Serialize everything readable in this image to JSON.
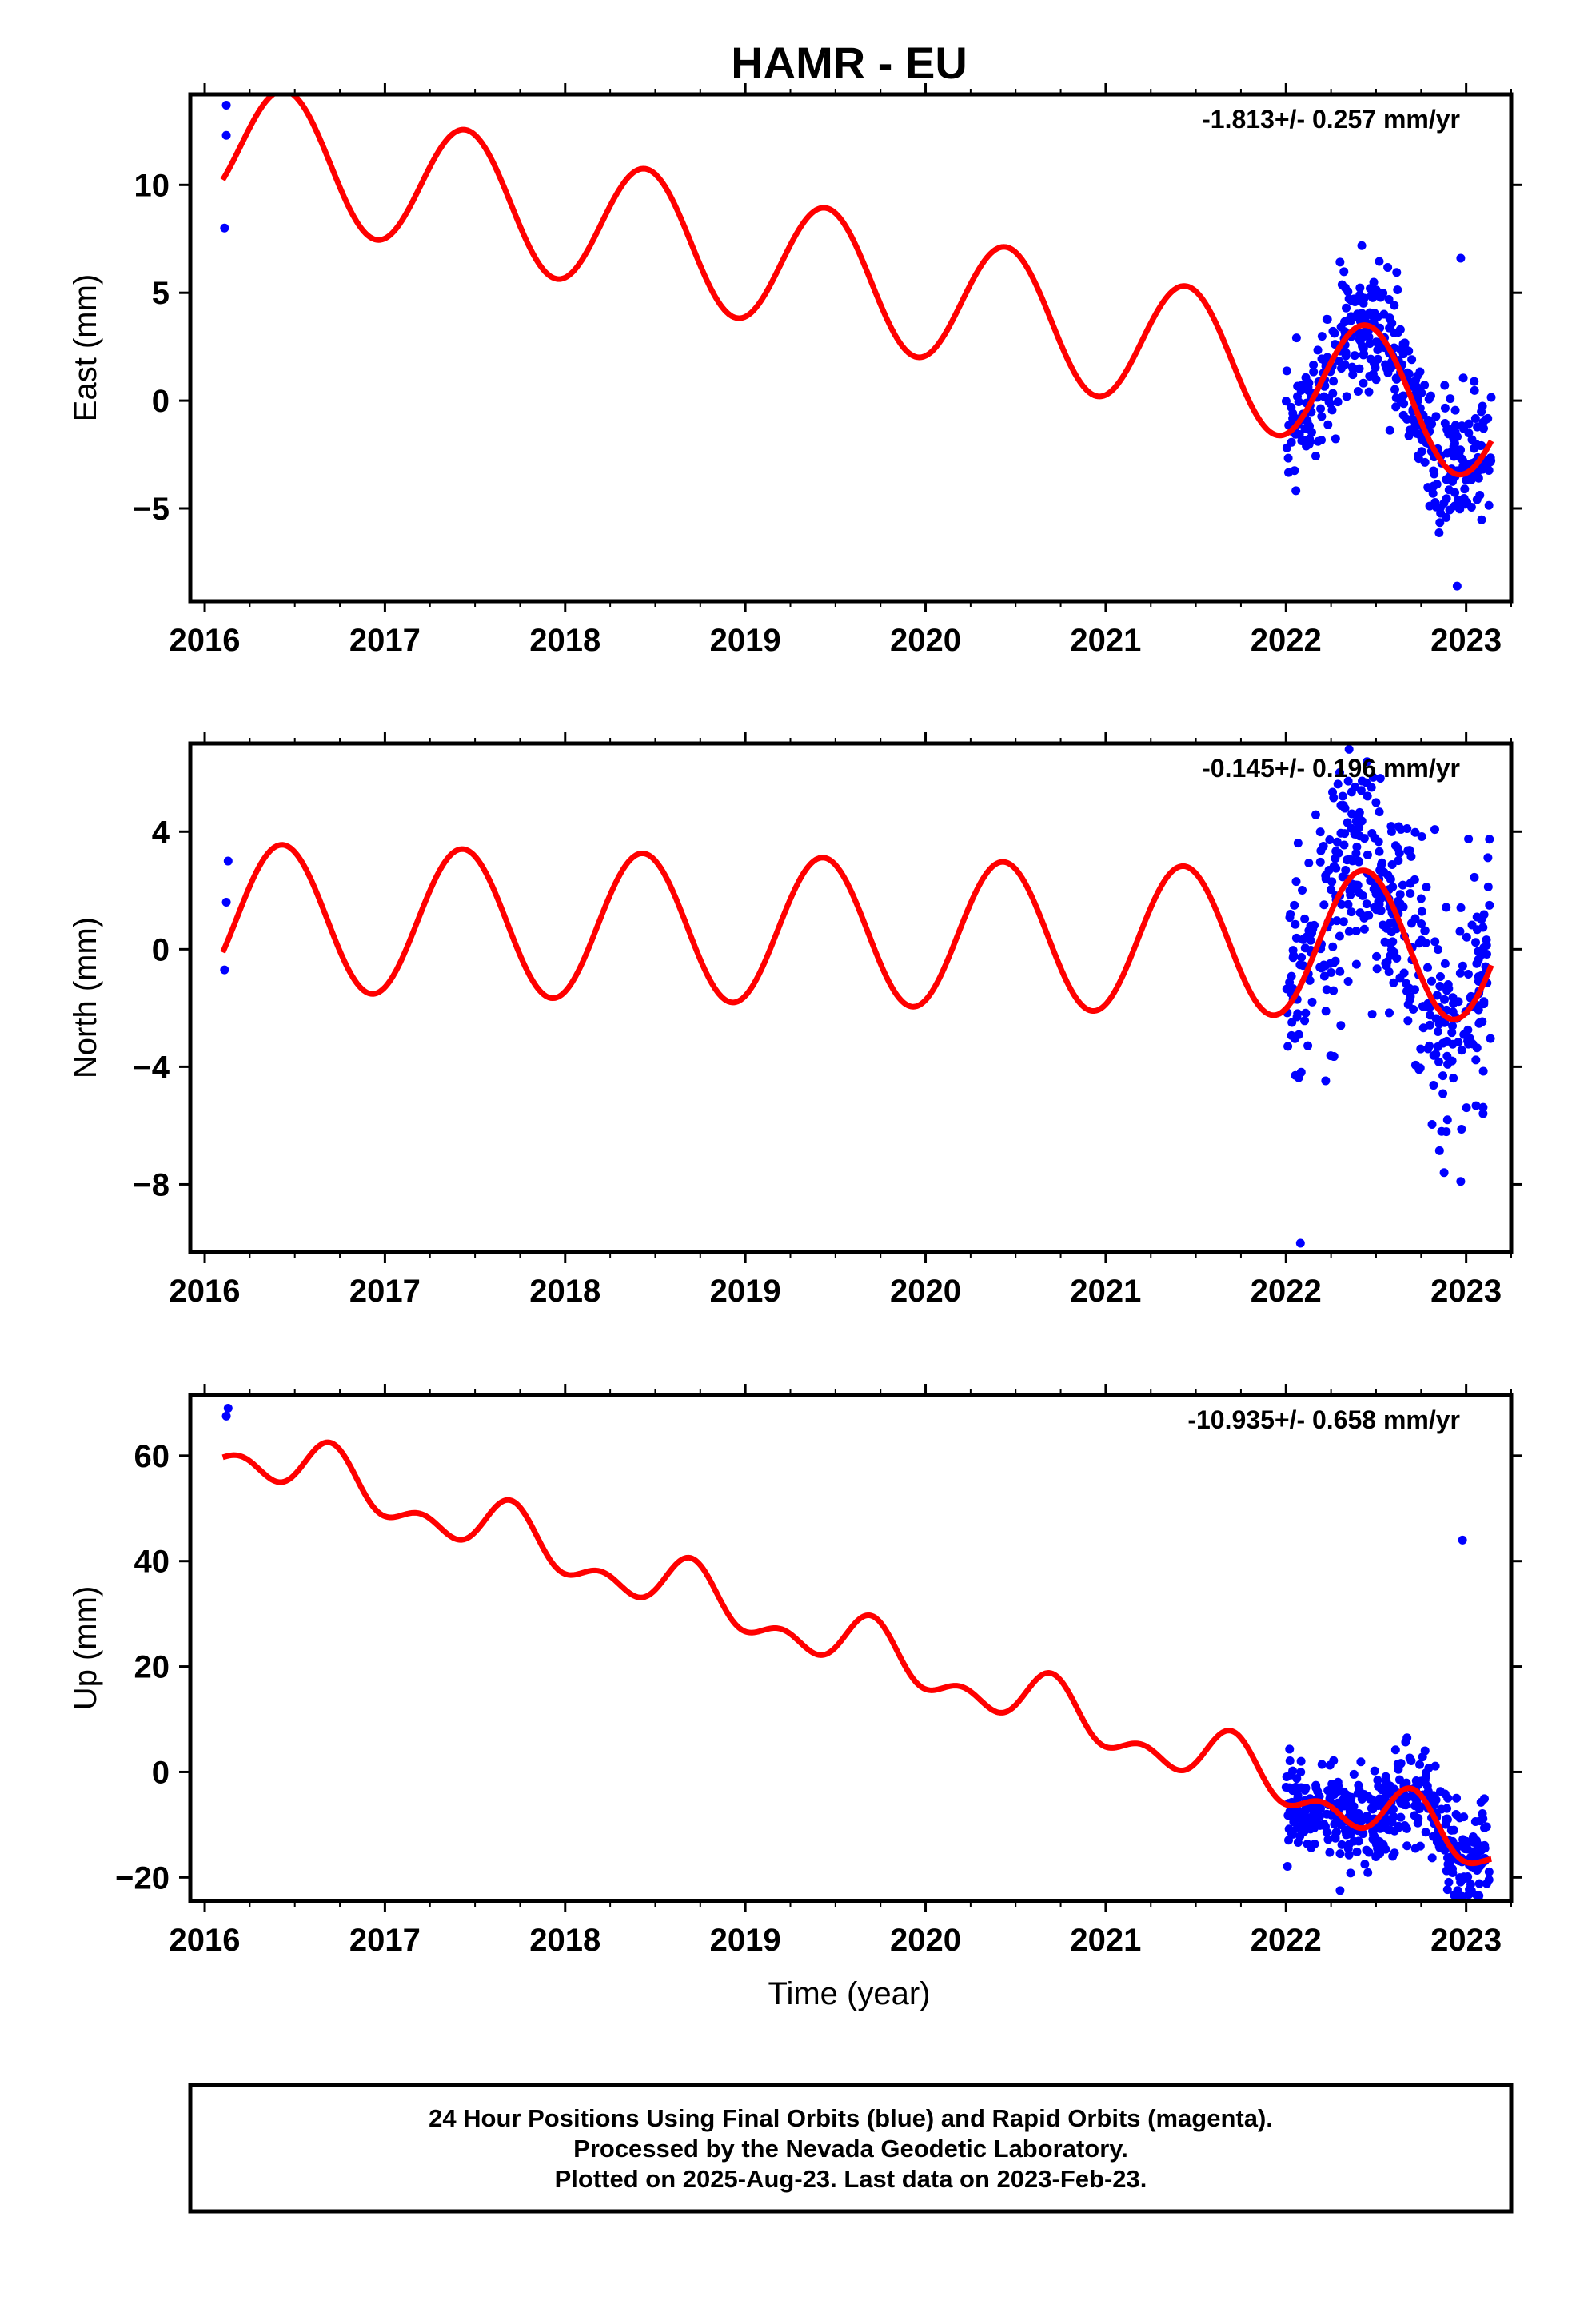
{
  "title": "HAMR - EU",
  "x_axis_label": "Time (year)",
  "colors": {
    "data": "#0000ff",
    "model": "#ff0000",
    "frame": "#000000"
  },
  "footer": {
    "line1": "24 Hour Positions Using Final Orbits (blue) and Rapid Orbits (magenta).",
    "line2": "Processed by the Nevada Geodetic Laboratory.",
    "line3": "Plotted on 2025-Aug-23. Last data on 2023-Feb-23."
  },
  "chart_data": [
    {
      "type": "scatter",
      "name": "east",
      "ylabel": "East (mm)",
      "rate_label": "-1.813+/- 0.257 mm/yr",
      "xlim": [
        2015.92,
        2023.25
      ],
      "ylim": [
        -9.3,
        14.2
      ],
      "xticks": [
        2016,
        2017,
        2018,
        2019,
        2020,
        2021,
        2022,
        2023
      ],
      "yticks": [
        -5,
        0,
        5,
        10
      ],
      "model": {
        "offset": 12.0,
        "rate": -1.813,
        "t0": 2016.1,
        "annual_amp": 3.0,
        "annual_phase_peak": 2016.45,
        "semiannual_amp": 0.0
      },
      "early_points": [
        [
          2016.12,
          13.7
        ],
        [
          2016.12,
          12.3
        ],
        [
          2016.11,
          8.0
        ]
      ],
      "cluster": {
        "start": 2022.0,
        "end": 2023.14,
        "count": 420,
        "noise": 1.5,
        "outliers": [
          [
            2022.97,
            6.6
          ],
          [
            2022.95,
            -8.6
          ]
        ]
      }
    },
    {
      "type": "scatter",
      "name": "north",
      "ylabel": "North (mm)",
      "rate_label": "-0.145+/- 0.196 mm/yr",
      "xlim": [
        2015.92,
        2023.25
      ],
      "ylim": [
        -10.3,
        7.0
      ],
      "xticks": [
        2016,
        2017,
        2018,
        2019,
        2020,
        2021,
        2022,
        2023
      ],
      "yticks": [
        -8,
        -4,
        0,
        4
      ],
      "model": {
        "offset": 1.1,
        "rate": -0.145,
        "t0": 2016.1,
        "annual_amp": 2.5,
        "annual_phase_peak": 2016.43,
        "semiannual_amp": 0.0
      },
      "early_points": [
        [
          2016.13,
          3.0
        ],
        [
          2016.12,
          1.6
        ],
        [
          2016.11,
          -0.7
        ]
      ],
      "cluster": {
        "start": 2022.0,
        "end": 2023.14,
        "count": 420,
        "noise": 2.0,
        "outliers": [
          [
            2022.08,
            -10.0
          ],
          [
            2022.97,
            -7.9
          ],
          [
            2022.35,
            6.8
          ]
        ]
      }
    },
    {
      "type": "scatter",
      "name": "up",
      "ylabel": "Up (mm)",
      "rate_label": "-10.935+/- 0.658 mm/yr",
      "xlim": [
        2015.92,
        2023.25
      ],
      "ylim": [
        -24.5,
        71.5
      ],
      "xticks": [
        2016,
        2017,
        2018,
        2019,
        2020,
        2021,
        2022,
        2023
      ],
      "yticks": [
        -20,
        0,
        20,
        40,
        60
      ],
      "model": {
        "offset": 62.0,
        "rate": -10.935,
        "t0": 2016.1,
        "annual_amp": 4.0,
        "annual_phase_peak": 2016.7,
        "semiannual_amp": 3.0
      },
      "early_points": [
        [
          2016.13,
          69.0
        ],
        [
          2016.12,
          67.5
        ]
      ],
      "cluster": {
        "start": 2022.0,
        "end": 2023.14,
        "count": 440,
        "noise": 4.5,
        "outliers": [
          [
            2022.98,
            44.0
          ],
          [
            2022.3,
            -22.5
          ]
        ]
      }
    }
  ]
}
